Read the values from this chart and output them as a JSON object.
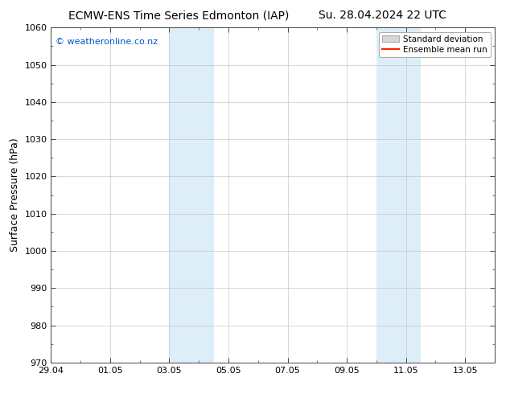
{
  "title_left": "ECMW-ENS Time Series Edmonton (IAP)",
  "title_right": "Su. 28.04.2024 22 UTC",
  "ylabel": "Surface Pressure (hPa)",
  "ylim": [
    970,
    1060
  ],
  "yticks": [
    970,
    980,
    990,
    1000,
    1010,
    1020,
    1030,
    1040,
    1050,
    1060
  ],
  "xlim": [
    0,
    15
  ],
  "xtick_positions": [
    0,
    2,
    4,
    6,
    8,
    10,
    12,
    14
  ],
  "xtick_labels": [
    "29.04",
    "01.05",
    "03.05",
    "05.05",
    "07.05",
    "09.05",
    "11.05",
    "13.05"
  ],
  "watermark": "© weatheronline.co.nz",
  "watermark_color": "#0055cc",
  "background_color": "#ffffff",
  "plot_bg_color": "#ffffff",
  "shaded_bands": [
    {
      "x_start": 4.0,
      "x_end": 5.5,
      "color": "#ddeef8"
    },
    {
      "x_start": 11.0,
      "x_end": 12.5,
      "color": "#ddeef8"
    }
  ],
  "legend_items": [
    {
      "label": "Standard deviation",
      "color": "#d8d8d8",
      "edgecolor": "#aaaaaa",
      "type": "patch"
    },
    {
      "label": "Ensemble mean run",
      "color": "#ff2200",
      "linewidth": 1.5,
      "type": "line"
    }
  ],
  "grid_color": "#bbbbbb",
  "grid_linestyle": "-",
  "grid_linewidth": 0.4,
  "tick_fontsize": 8,
  "label_fontsize": 9,
  "title_fontsize": 10,
  "minor_xtick_interval": 1
}
